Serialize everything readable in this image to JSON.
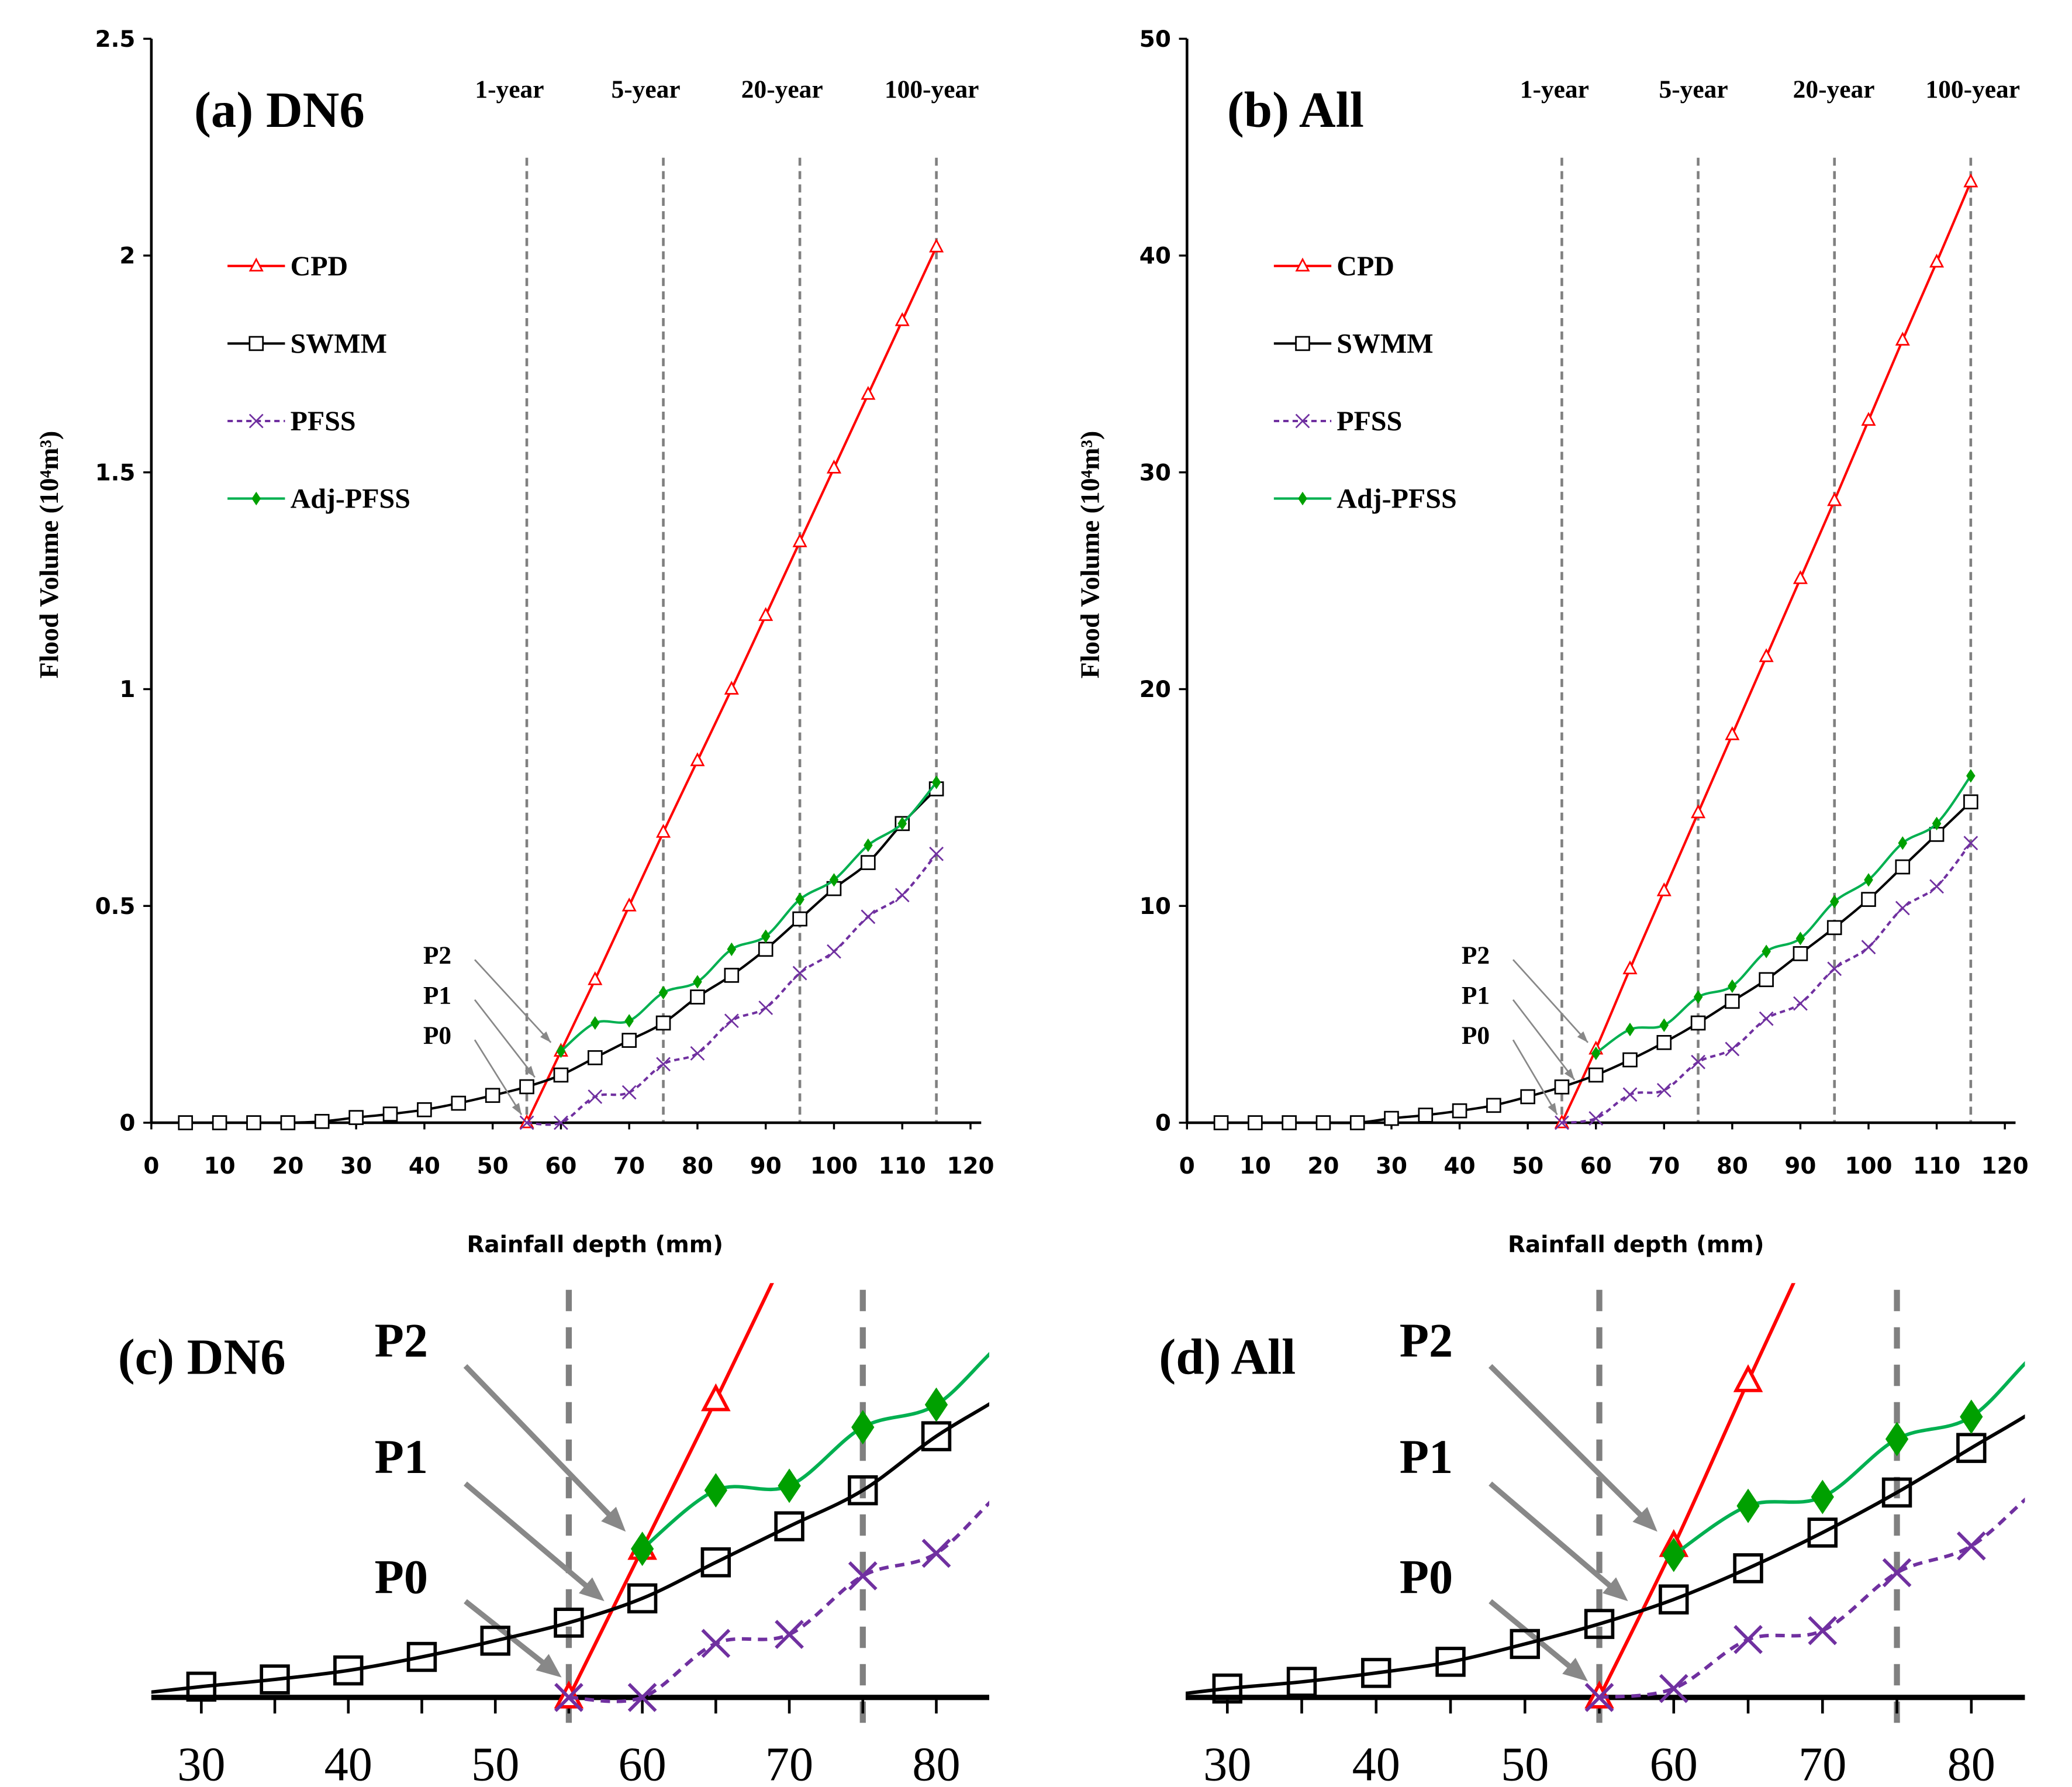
{
  "colors": {
    "CPD": "#ff0000",
    "SWMM": "#000000",
    "PFSS": "#7030a0",
    "Adj-PFSS": "#00b050",
    "dash": "#808080"
  },
  "annotations": {
    "points": [
      "P2",
      "P1",
      "P0"
    ]
  },
  "chart_data": [
    {
      "id": "a",
      "type": "line",
      "title": "(a) DN6",
      "xlabel": "Rainfall depth (mm)",
      "ylabel": "Flood Volume (10⁴m³)",
      "xlim": [
        0,
        120
      ],
      "ylim": [
        0,
        2.5
      ],
      "xticks": [
        0,
        10,
        20,
        30,
        40,
        50,
        60,
        70,
        80,
        90,
        100,
        110,
        120
      ],
      "yticks": [
        0,
        0.5,
        1,
        1.5,
        2,
        2.5
      ],
      "ytick_labels": [
        "0",
        "0.5",
        "1",
        "1.5",
        "2",
        "2.5"
      ],
      "legend": "upper-left",
      "return_periods": [
        {
          "label": "1-year",
          "x": 55
        },
        {
          "label": "5-year",
          "x": 75
        },
        {
          "label": "20-year",
          "x": 95
        },
        {
          "label": "100-year",
          "x": 115
        }
      ],
      "series": [
        {
          "name": "CPD",
          "x": [
            55,
            60,
            65,
            70,
            75,
            80,
            85,
            90,
            95,
            100,
            105,
            110,
            115
          ],
          "y": [
            0,
            0.165,
            0.33,
            0.5,
            0.67,
            0.835,
            1.0,
            1.17,
            1.34,
            1.51,
            1.68,
            1.85,
            2.02
          ]
        },
        {
          "name": "SWMM",
          "x": [
            5,
            10,
            15,
            20,
            25,
            30,
            35,
            40,
            45,
            50,
            55,
            60,
            65,
            70,
            75,
            80,
            85,
            90,
            95,
            100,
            105,
            110,
            115
          ],
          "y": [
            0,
            0,
            0,
            0,
            0.003,
            0.012,
            0.02,
            0.03,
            0.045,
            0.063,
            0.083,
            0.11,
            0.15,
            0.19,
            0.23,
            0.29,
            0.34,
            0.4,
            0.47,
            0.54,
            0.6,
            0.69,
            0.77
          ]
        },
        {
          "name": "PFSS",
          "x": [
            55,
            60,
            65,
            70,
            75,
            80,
            85,
            90,
            95,
            100,
            105,
            110,
            115
          ],
          "y": [
            0,
            0,
            0.06,
            0.07,
            0.135,
            0.16,
            0.235,
            0.265,
            0.345,
            0.395,
            0.475,
            0.525,
            0.62
          ]
        },
        {
          "name": "Adj-PFSS",
          "x": [
            60,
            65,
            70,
            75,
            80,
            85,
            90,
            95,
            100,
            105,
            110,
            115
          ],
          "y": [
            0.165,
            0.23,
            0.235,
            0.3,
            0.325,
            0.4,
            0.43,
            0.515,
            0.56,
            0.64,
            0.69,
            0.785
          ]
        }
      ]
    },
    {
      "id": "b",
      "type": "line",
      "title": "(b) All",
      "xlabel": "Rainfall depth (mm)",
      "ylabel": "Flood Volume (10⁴m³)",
      "xlim": [
        0,
        120
      ],
      "ylim": [
        0,
        50
      ],
      "xticks": [
        0,
        10,
        20,
        30,
        40,
        50,
        60,
        70,
        80,
        90,
        100,
        110,
        120
      ],
      "yticks": [
        0,
        10,
        20,
        30,
        40,
        50
      ],
      "ytick_labels": [
        "0",
        "10",
        "20",
        "30",
        "40",
        "50"
      ],
      "legend": "upper-left",
      "return_periods": [
        {
          "label": "1-year",
          "x": 55
        },
        {
          "label": "5-year",
          "x": 75
        },
        {
          "label": "20-year",
          "x": 95
        },
        {
          "label": "100-year",
          "x": 115
        }
      ],
      "series": [
        {
          "name": "CPD",
          "x": [
            55,
            60,
            65,
            70,
            75,
            80,
            85,
            90,
            95,
            100,
            105,
            110,
            115
          ],
          "y": [
            0,
            3.4,
            7.1,
            10.7,
            14.3,
            17.9,
            21.5,
            25.1,
            28.7,
            32.4,
            36.1,
            39.7,
            43.4
          ]
        },
        {
          "name": "SWMM",
          "x": [
            5,
            10,
            15,
            20,
            25,
            30,
            35,
            40,
            45,
            50,
            55,
            60,
            65,
            70,
            75,
            80,
            85,
            90,
            95,
            100,
            105,
            110,
            115
          ],
          "y": [
            0,
            0,
            0,
            0,
            0,
            0.2,
            0.35,
            0.55,
            0.8,
            1.2,
            1.65,
            2.2,
            2.9,
            3.7,
            4.6,
            5.6,
            6.6,
            7.8,
            9.0,
            10.3,
            11.8,
            13.3,
            14.8
          ]
        },
        {
          "name": "PFSS",
          "x": [
            55,
            60,
            65,
            70,
            75,
            80,
            85,
            90,
            95,
            100,
            105,
            110,
            115
          ],
          "y": [
            0,
            0.2,
            1.3,
            1.5,
            2.8,
            3.4,
            4.8,
            5.5,
            7.1,
            8.1,
            9.9,
            10.9,
            12.9
          ]
        },
        {
          "name": "Adj-PFSS",
          "x": [
            60,
            65,
            70,
            75,
            80,
            85,
            90,
            95,
            100,
            105,
            110,
            115
          ],
          "y": [
            3.2,
            4.3,
            4.5,
            5.8,
            6.3,
            7.9,
            8.5,
            10.2,
            11.2,
            12.9,
            13.8,
            16.0
          ]
        }
      ]
    },
    {
      "id": "c",
      "type": "line",
      "title": "(c) DN6",
      "zoom_of": "a",
      "xlim": [
        26.6,
        83.6
      ],
      "ylim": [
        0,
        0.46
      ],
      "xticks": [
        30,
        40,
        50,
        60,
        70,
        80
      ],
      "return_periods": [
        {
          "x": 55
        },
        {
          "x": 75
        }
      ]
    },
    {
      "id": "d",
      "type": "line",
      "title": "(d) All",
      "zoom_of": "b",
      "xlim": [
        27.2,
        83.6
      ],
      "ylim": [
        0,
        9.3
      ],
      "xticks": [
        30,
        40,
        50,
        60,
        70,
        80
      ],
      "return_periods": [
        {
          "x": 55
        },
        {
          "x": 75
        }
      ]
    }
  ]
}
